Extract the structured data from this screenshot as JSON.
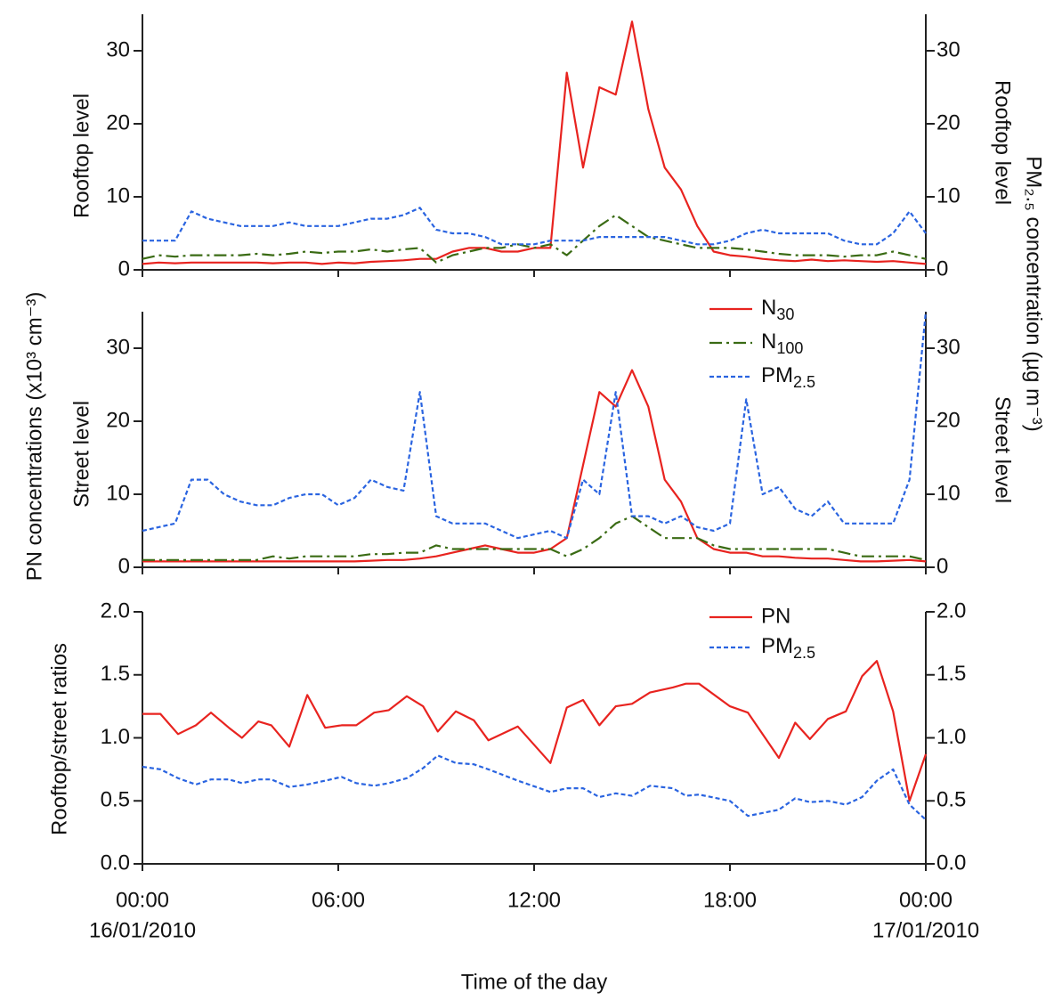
{
  "shared": {
    "ylabel": "PN concentrations (x10³ cm⁻³)",
    "y2label": "PM₂.₅ concentration (µg m⁻³)",
    "xlabel": "Time of the day"
  },
  "chart_data": [
    {
      "type": "line",
      "ylabel": "Rooftop level",
      "y2label": "Rooftop level",
      "x": [
        0,
        0.5,
        1,
        1.5,
        2,
        2.5,
        3,
        3.5,
        4,
        4.5,
        5,
        5.5,
        6,
        6.5,
        7,
        7.5,
        8,
        8.5,
        9,
        9.5,
        10,
        10.5,
        11,
        11.5,
        12,
        12.5,
        13,
        13.5,
        14,
        14.5,
        15,
        15.5,
        16,
        16.5,
        17,
        17.5,
        18,
        18.5,
        19,
        19.5,
        20,
        20.5,
        21,
        21.5,
        22,
        22.5,
        23,
        23.5,
        24
      ],
      "xlim": [
        0,
        24
      ],
      "xticks": [
        0,
        6,
        12,
        18,
        24
      ],
      "ylim": [
        0,
        35
      ],
      "yticks": [
        0,
        10,
        20,
        30
      ],
      "y2lim": [
        0,
        35
      ],
      "y2ticks": [
        0,
        10,
        20,
        30
      ],
      "series": [
        {
          "color": "#e8231f",
          "linestyle": "solid",
          "values": [
            0.8,
            1,
            0.9,
            1,
            1,
            1,
            1,
            1,
            0.9,
            1,
            1,
            0.8,
            1,
            0.9,
            1.1,
            1.2,
            1.3,
            1.5,
            1.5,
            2.5,
            3,
            3,
            2.5,
            2.5,
            3,
            3,
            27,
            14,
            25,
            24,
            34,
            22,
            14,
            11,
            6,
            2.5,
            2,
            1.8,
            1.5,
            1.3,
            1.2,
            1.4,
            1.2,
            1.3,
            1.2,
            1.1,
            1.2,
            1,
            0.8
          ]
        },
        {
          "color": "#3a6b14",
          "linestyle": "dashdot",
          "values": [
            1.5,
            2,
            1.8,
            2,
            2,
            2,
            2,
            2.2,
            2,
            2.2,
            2.5,
            2.3,
            2.5,
            2.5,
            2.8,
            2.5,
            2.8,
            3,
            1,
            2,
            2.5,
            3,
            3,
            3.5,
            3,
            3.5,
            2,
            4,
            6,
            7.5,
            6,
            4.5,
            4,
            3.5,
            3,
            3,
            3,
            2.8,
            2.5,
            2.2,
            2,
            2,
            2,
            1.8,
            2,
            2,
            2.5,
            2,
            1.5
          ]
        },
        {
          "color": "#2a64e0",
          "linestyle": "dotted",
          "axis": "y2",
          "values": [
            4,
            4,
            4,
            8,
            7,
            6.5,
            6,
            6,
            6,
            6.5,
            6,
            6,
            6,
            6.5,
            7,
            7,
            7.5,
            8.5,
            5.5,
            5,
            5,
            4.5,
            3.5,
            3.5,
            3.5,
            4,
            4,
            4,
            4.5,
            4.5,
            4.5,
            4.5,
            4.5,
            4,
            3.5,
            3.5,
            4,
            5,
            5.5,
            5,
            5,
            5,
            5,
            4,
            3.5,
            3.5,
            5,
            8,
            5
          ]
        }
      ]
    },
    {
      "type": "line",
      "ylabel": "Street level",
      "y2label": "Street level",
      "legend": "upper right",
      "x": [
        0,
        0.5,
        1,
        1.5,
        2,
        2.5,
        3,
        3.5,
        4,
        4.5,
        5,
        5.5,
        6,
        6.5,
        7,
        7.5,
        8,
        8.5,
        9,
        9.5,
        10,
        10.5,
        11,
        11.5,
        12,
        12.5,
        13,
        13.5,
        14,
        14.5,
        15,
        15.5,
        16,
        16.5,
        17,
        17.5,
        18,
        18.5,
        19,
        19.5,
        20,
        20.5,
        21,
        21.5,
        22,
        22.5,
        23,
        23.5,
        24
      ],
      "xlim": [
        0,
        24
      ],
      "xticks": [
        0,
        6,
        12,
        18,
        24
      ],
      "ylim": [
        0,
        35
      ],
      "yticks": [
        0,
        10,
        20,
        30
      ],
      "y2lim": [
        0,
        35
      ],
      "y2ticks": [
        0,
        10,
        20,
        30
      ],
      "series": [
        {
          "name": "N30",
          "color": "#e8231f",
          "linestyle": "solid",
          "values": [
            0.8,
            0.8,
            0.8,
            0.8,
            0.8,
            0.8,
            0.8,
            0.8,
            0.8,
            0.8,
            0.8,
            0.8,
            0.8,
            0.8,
            0.9,
            1,
            1,
            1.2,
            1.5,
            2,
            2.5,
            3,
            2.5,
            2,
            2,
            2.5,
            4,
            14,
            24,
            22,
            27,
            22,
            12,
            9,
            4,
            2.5,
            2,
            2,
            1.5,
            1.5,
            1.3,
            1.2,
            1.2,
            1,
            0.8,
            0.8,
            0.9,
            1,
            0.8
          ]
        },
        {
          "name": "N100",
          "color": "#3a6b14",
          "linestyle": "dashdot",
          "values": [
            1,
            1,
            1,
            1,
            1,
            1,
            1,
            1,
            1.5,
            1.2,
            1.5,
            1.5,
            1.5,
            1.5,
            1.8,
            1.8,
            2,
            2,
            3,
            2.5,
            2.5,
            2.5,
            2.5,
            2.5,
            2.5,
            2.5,
            1.5,
            2.5,
            4,
            6,
            7,
            5.5,
            4,
            4,
            4,
            3,
            2.5,
            2.5,
            2.5,
            2.5,
            2.5,
            2.5,
            2.5,
            2,
            1.5,
            1.5,
            1.5,
            1.5,
            1
          ]
        },
        {
          "name": "PM2.5",
          "color": "#2a64e0",
          "linestyle": "dotted",
          "axis": "y2",
          "values": [
            5,
            5.5,
            6,
            12,
            12,
            10,
            9,
            8.5,
            8.5,
            9.5,
            10,
            10,
            8.5,
            9.5,
            12,
            11,
            10.5,
            24,
            7,
            6,
            6,
            6,
            5,
            4,
            4.5,
            5,
            4,
            12,
            10,
            24,
            7,
            7,
            6,
            7,
            5.5,
            5,
            6,
            23,
            10,
            11,
            8,
            7,
            9,
            6,
            6,
            6,
            6,
            12,
            35
          ]
        }
      ]
    },
    {
      "type": "line",
      "ylabel": "Rooftop/street ratios",
      "legend": "upper right",
      "x": [
        0,
        0.55,
        1.09,
        1.64,
        2.1,
        2.65,
        3.05,
        3.55,
        3.95,
        4.5,
        5.05,
        5.6,
        6.1,
        6.55,
        7.1,
        7.55,
        8.1,
        8.6,
        9.05,
        9.6,
        10.15,
        10.6,
        11.5,
        12.5,
        13,
        13.5,
        14,
        14.5,
        15,
        15.55,
        16.25,
        16.65,
        17.05,
        18,
        18.55,
        19.5,
        20,
        20.45,
        21,
        21.55,
        22.05,
        22.5,
        23,
        23.5,
        24
      ],
      "xlim": [
        0,
        24
      ],
      "xticks": [
        {
          "value": 0,
          "label": "00:00"
        },
        {
          "value": 6,
          "label": "06:00"
        },
        {
          "value": 12,
          "label": "12:00"
        },
        {
          "value": 18,
          "label": "18:00"
        },
        {
          "value": 24,
          "label": "00:00"
        }
      ],
      "date_labels": [
        "16/01/2010",
        "17/01/2010"
      ],
      "ylim": [
        0,
        2
      ],
      "yticks": [
        {
          "value": 0,
          "label": "0.0"
        },
        0.5,
        {
          "value": 1,
          "label": "1.0"
        },
        1.5,
        {
          "value": 2,
          "label": "2.0"
        }
      ],
      "y2lim": [
        0,
        2
      ],
      "y2ticks": [
        {
          "value": 0,
          "label": "0.0"
        },
        0.5,
        {
          "value": 1,
          "label": "1.0"
        },
        1.5,
        {
          "value": 2,
          "label": "2.0"
        }
      ],
      "series": [
        {
          "name": "PN",
          "color": "#e8231f",
          "linestyle": "solid",
          "values": [
            1.19,
            1.19,
            1.03,
            1.1,
            1.2,
            1.08,
            1.0,
            1.13,
            1.1,
            0.93,
            1.34,
            1.08,
            1.1,
            1.1,
            1.2,
            1.22,
            1.33,
            1.25,
            1.05,
            1.21,
            1.14,
            0.98,
            1.09,
            0.8,
            1.24,
            1.3,
            1.1,
            1.25,
            1.27,
            1.36,
            1.4,
            1.43,
            1.43,
            1.25,
            1.2,
            0.84,
            1.12,
            0.99,
            1.15,
            1.21,
            1.49,
            1.61,
            1.21,
            0.5,
            0.87
          ]
        },
        {
          "name": "PM2.5",
          "color": "#2a64e0",
          "linestyle": "dotted",
          "values": [
            0.77,
            0.75,
            0.68,
            0.63,
            0.67,
            0.67,
            0.64,
            0.67,
            0.67,
            0.61,
            0.63,
            0.66,
            0.69,
            0.64,
            0.62,
            0.64,
            0.68,
            0.76,
            0.86,
            0.8,
            0.79,
            0.75,
            0.66,
            0.57,
            0.6,
            0.6,
            0.53,
            0.56,
            0.54,
            0.62,
            0.6,
            0.54,
            0.55,
            0.5,
            0.38,
            0.43,
            0.52,
            0.49,
            0.5,
            0.47,
            0.53,
            0.66,
            0.75,
            0.47,
            0.35
          ]
        }
      ]
    }
  ]
}
